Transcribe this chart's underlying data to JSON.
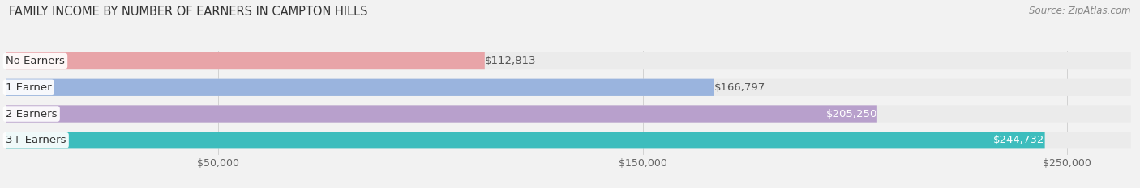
{
  "title": "FAMILY INCOME BY NUMBER OF EARNERS IN CAMPTON HILLS",
  "source": "Source: ZipAtlas.com",
  "categories": [
    "No Earners",
    "1 Earner",
    "2 Earners",
    "3+ Earners"
  ],
  "values": [
    112813,
    166797,
    205250,
    244732
  ],
  "labels": [
    "$112,813",
    "$166,797",
    "$205,250",
    "$244,732"
  ],
  "bar_colors": [
    "#e8a4a8",
    "#9ab4de",
    "#b8a0cc",
    "#3dbdbd"
  ],
  "bar_bg_color": "#ebebeb",
  "label_inside": [
    false,
    false,
    true,
    true
  ],
  "label_colors_outside": "#555555",
  "label_colors_inside": "#ffffff",
  "xmin": 0,
  "xmax": 265000,
  "xticks": [
    50000,
    150000,
    250000
  ],
  "xticklabels": [
    "$50,000",
    "$150,000",
    "$250,000"
  ],
  "background_color": "#f2f2f2",
  "title_fontsize": 10.5,
  "source_fontsize": 8.5,
  "bar_label_fontsize": 9.5,
  "category_fontsize": 9.5,
  "xtick_fontsize": 9,
  "bar_height": 0.65,
  "bar_gap": 0.12
}
